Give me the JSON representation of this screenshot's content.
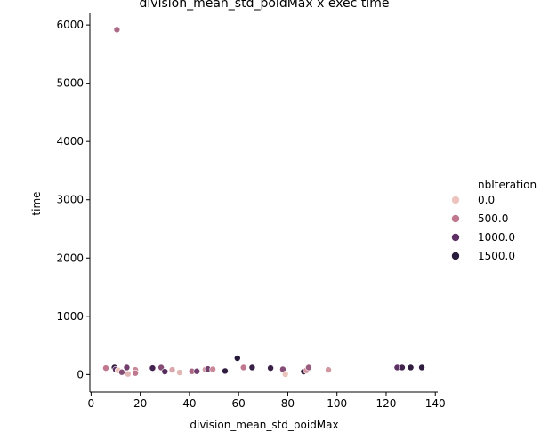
{
  "chart_data": {
    "type": "scatter",
    "title": "division_mean_std_poidMax x exec time",
    "xlabel": "division_mean_std_poidMax",
    "ylabel": "time",
    "xlim": [
      -0.5,
      141
    ],
    "ylim": [
      -300,
      6200
    ],
    "xticks": [
      0,
      20,
      40,
      60,
      80,
      100,
      120,
      140
    ],
    "yticks": [
      0,
      1000,
      2000,
      3000,
      4000,
      5000,
      6000
    ],
    "grid": false,
    "legend": {
      "title": "nbIteration",
      "placement": "right",
      "entries": [
        {
          "label": "0.0",
          "color": "#ebc5bd"
        },
        {
          "label": "500.0",
          "color": "#c0788f"
        },
        {
          "label": "1000.0",
          "color": "#5e2f64"
        },
        {
          "label": "1500.0",
          "color": "#2a1a3c"
        }
      ]
    },
    "points": [
      {
        "x": 10.5,
        "y": 5920,
        "nbIteration": 600
      },
      {
        "x": 6,
        "y": 110,
        "nbIteration": 500
      },
      {
        "x": 9.5,
        "y": 120,
        "nbIteration": 1500
      },
      {
        "x": 10,
        "y": 85,
        "nbIteration": 1000
      },
      {
        "x": 11,
        "y": 70,
        "nbIteration": 0
      },
      {
        "x": 12.5,
        "y": 40,
        "nbIteration": 800
      },
      {
        "x": 14.5,
        "y": 120,
        "nbIteration": 900
      },
      {
        "x": 15,
        "y": 10,
        "nbIteration": 100
      },
      {
        "x": 18,
        "y": 80,
        "nbIteration": 400
      },
      {
        "x": 18,
        "y": 25,
        "nbIteration": 500
      },
      {
        "x": 25,
        "y": 110,
        "nbIteration": 1300
      },
      {
        "x": 28.5,
        "y": 120,
        "nbIteration": 800
      },
      {
        "x": 30,
        "y": 50,
        "nbIteration": 1100
      },
      {
        "x": 33,
        "y": 80,
        "nbIteration": 200
      },
      {
        "x": 36,
        "y": 35,
        "nbIteration": 100
      },
      {
        "x": 41,
        "y": 55,
        "nbIteration": 600
      },
      {
        "x": 43,
        "y": 55,
        "nbIteration": 900
      },
      {
        "x": 46.5,
        "y": 85,
        "nbIteration": 300
      },
      {
        "x": 47.5,
        "y": 95,
        "nbIteration": 900
      },
      {
        "x": 49.5,
        "y": 90,
        "nbIteration": 400
      },
      {
        "x": 54.5,
        "y": 60,
        "nbIteration": 1500
      },
      {
        "x": 59.5,
        "y": 280,
        "nbIteration": 1600
      },
      {
        "x": 62,
        "y": 120,
        "nbIteration": 500
      },
      {
        "x": 65.5,
        "y": 120,
        "nbIteration": 1400
      },
      {
        "x": 73,
        "y": 110,
        "nbIteration": 1400
      },
      {
        "x": 78,
        "y": 90,
        "nbIteration": 800
      },
      {
        "x": 79,
        "y": 5,
        "nbIteration": 0
      },
      {
        "x": 86.5,
        "y": 50,
        "nbIteration": 1500
      },
      {
        "x": 87.5,
        "y": 70,
        "nbIteration": 300
      },
      {
        "x": 88.5,
        "y": 120,
        "nbIteration": 700
      },
      {
        "x": 96.5,
        "y": 80,
        "nbIteration": 300
      },
      {
        "x": 124.5,
        "y": 120,
        "nbIteration": 1000
      },
      {
        "x": 126.5,
        "y": 120,
        "nbIteration": 1300
      },
      {
        "x": 130,
        "y": 120,
        "nbIteration": 1500
      },
      {
        "x": 134.5,
        "y": 120,
        "nbIteration": 1500
      }
    ]
  }
}
